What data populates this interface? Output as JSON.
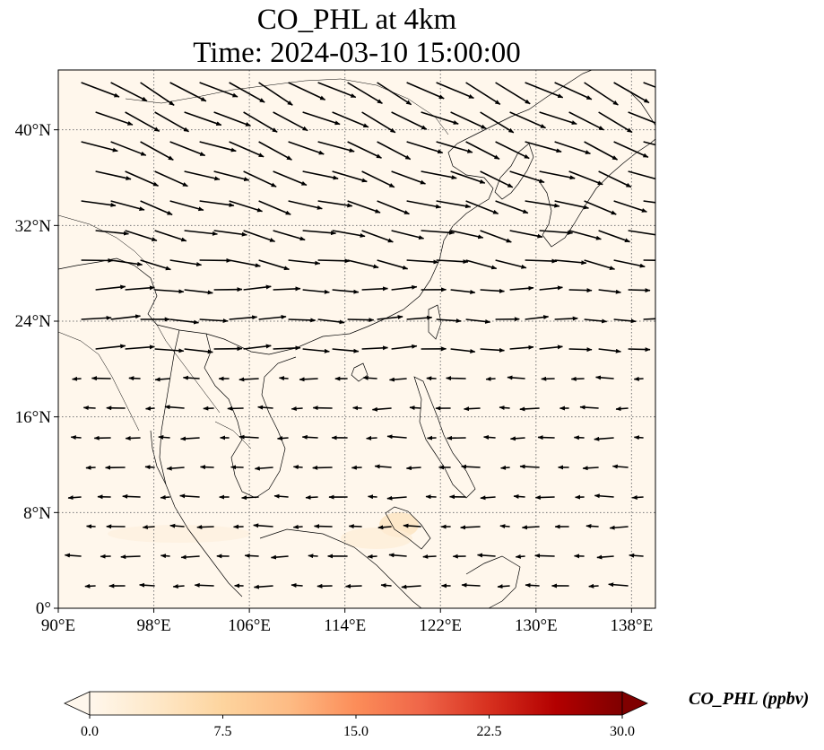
{
  "title": {
    "line1": "CO_PHL at 4km",
    "line2": "Time: 2024-03-10 15:00:00"
  },
  "axes": {
    "x_ticks": [
      "90°E",
      "98°E",
      "106°E",
      "114°E",
      "122°E",
      "130°E",
      "138°E"
    ],
    "y_ticks": [
      "40°N",
      "32°N",
      "24°N",
      "16°N",
      "8°N",
      "0°"
    ],
    "lon_range": [
      90,
      140
    ],
    "lat_range": [
      0,
      45
    ],
    "x_tick_values": [
      90,
      98,
      106,
      114,
      122,
      130,
      138
    ],
    "y_tick_values": [
      40,
      32,
      24,
      16,
      8,
      0
    ],
    "gridlines": "dotted"
  },
  "colorbar": {
    "label": "CO_PHL (ppbv)",
    "ticks": [
      "0.0",
      "7.5",
      "15.0",
      "22.5",
      "30.0"
    ],
    "range": [
      0,
      30
    ],
    "colormap": "OrRd",
    "colors": [
      "#fff7ec",
      "#fee8c8",
      "#fdd49e",
      "#fdbb84",
      "#fc8d59",
      "#ef6548",
      "#d7301f",
      "#b30000",
      "#7f0000"
    ],
    "extend": "both"
  },
  "map": {
    "background_color": "#fff7ec",
    "field_description": "near-zero CO concentration with a faint plume over the South China Sea"
  }
}
